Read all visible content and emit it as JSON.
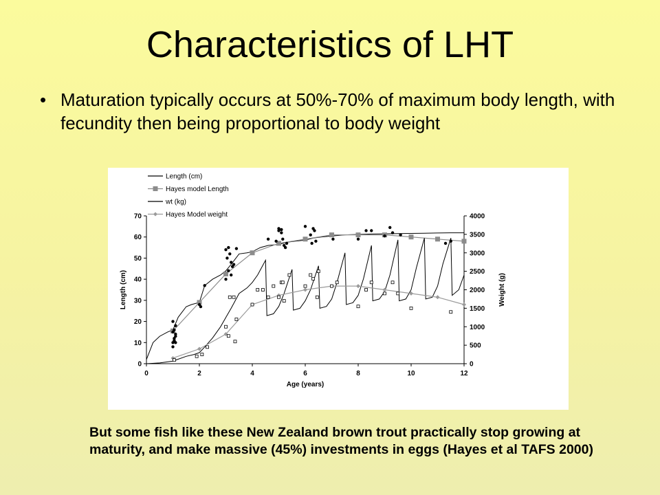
{
  "slide": {
    "title": "Characteristics of LHT",
    "bullet": "Maturation typically occurs at 50%-70% of maximum body length, with fecundity then being proportional to body weight",
    "caption": "But some fish like these New Zealand brown trout practically stop growing at maturity, and make massive (45%) investments in eggs (Hayes et al TAFS 2000)"
  },
  "chart_data": {
    "type": "line",
    "xlabel": "Age (years)",
    "ylabel": "Length (cm)",
    "y2label": "Weight (g)",
    "xlim": [
      0,
      12
    ],
    "ylim": [
      0,
      70
    ],
    "y2lim": [
      0,
      4000
    ],
    "xticks": [
      0,
      2,
      4,
      6,
      8,
      10,
      12
    ],
    "yticks": [
      0,
      10,
      20,
      30,
      40,
      50,
      60,
      70
    ],
    "y2ticks": [
      0,
      500,
      1000,
      1500,
      2000,
      2500,
      3000,
      3500,
      4000
    ],
    "legend_position": "top-left",
    "legend": [
      "Length (cm)",
      "Hayes model Length",
      "wt (kg)",
      "Hayes Model weight"
    ],
    "series": [
      {
        "name": "Length (cm)",
        "style": "line",
        "axis": "left",
        "color": "#000000",
        "x": [
          0,
          0.25,
          0.5,
          0.8,
          1.0,
          1.2,
          1.5,
          1.7,
          2.0,
          2.2,
          2.5,
          2.8,
          3.0,
          3.2,
          3.5,
          3.8,
          4.0,
          4.3,
          4.6,
          5.0,
          5.3,
          5.6,
          6.0,
          6.3,
          6.6,
          7.0,
          7.5,
          8.0,
          8.5,
          9.0,
          9.5,
          10.0,
          10.5,
          11.0,
          11.5,
          12.0
        ],
        "y": [
          2,
          10,
          13,
          15,
          16,
          22,
          27,
          28,
          29,
          37,
          40,
          42,
          44,
          47,
          52,
          52.5,
          53,
          55,
          56,
          56.5,
          57.5,
          58,
          58.5,
          59.5,
          60,
          60.5,
          61,
          61.2,
          61.4,
          61.5,
          61.6,
          61.7,
          61.8,
          61.9,
          62,
          62
        ]
      },
      {
        "name": "Hayes model Length",
        "style": "line-square",
        "axis": "left",
        "color": "#8c8c8c",
        "x": [
          1,
          2,
          3,
          4,
          5,
          6,
          7,
          8,
          9,
          10,
          11,
          12
        ],
        "y": [
          15.5,
          29,
          42.5,
          52.5,
          57,
          59,
          61,
          61,
          61,
          60,
          59,
          58
        ]
      },
      {
        "name": "wt (kg)",
        "style": "line",
        "axis": "right",
        "color": "#000000",
        "x": [
          0,
          0.5,
          1.0,
          1.5,
          1.8,
          2.0,
          2.2,
          2.5,
          2.8,
          3.0,
          3.2,
          3.5,
          3.8,
          4.0,
          4.2,
          4.5,
          4.55,
          4.8,
          5.0,
          5.2,
          5.5,
          5.55,
          5.8,
          6.0,
          6.2,
          6.5,
          6.55,
          6.8,
          7.0,
          7.2,
          7.5,
          7.55,
          7.8,
          8.0,
          8.2,
          8.5,
          8.55,
          8.8,
          9.0,
          9.2,
          9.5,
          9.55,
          9.8,
          10.0,
          10.2,
          10.5,
          10.55,
          10.8,
          11.0,
          11.2,
          11.5,
          11.55,
          11.8,
          12.0
        ],
        "y": [
          0,
          20,
          70,
          200,
          250,
          300,
          450,
          700,
          1000,
          1250,
          1500,
          1900,
          2050,
          2200,
          2400,
          2800,
          1300,
          1350,
          1550,
          1900,
          2550,
          1450,
          1500,
          1700,
          2000,
          2650,
          1500,
          1550,
          1750,
          2200,
          3000,
          1600,
          1650,
          1850,
          2300,
          3200,
          1700,
          1750,
          1950,
          2400,
          3350,
          1700,
          1750,
          2000,
          2600,
          3400,
          1750,
          1800,
          2100,
          2700,
          3400,
          1850,
          2000,
          2400
        ]
      },
      {
        "name": "Hayes Model weight",
        "style": "line-diamond",
        "axis": "right",
        "color": "#9a9a9a",
        "x": [
          1,
          2,
          3,
          4,
          5,
          6,
          7,
          8,
          9,
          10,
          11,
          12
        ],
        "y": [
          150,
          400,
          800,
          1600,
          1850,
          2000,
          2100,
          2100,
          2000,
          1900,
          1800,
          1600
        ]
      },
      {
        "name": "Length observations",
        "style": "filled-dots",
        "axis": "left",
        "color": "#000000",
        "x": [
          1.0,
          1.0,
          1.05,
          1.05,
          1.1,
          1.1,
          1.0,
          1.05,
          1.1,
          1.0,
          1.1,
          2.0,
          2.05,
          2.2,
          3.0,
          3.1,
          3.2,
          3.3,
          3.1,
          3.0,
          3.2,
          3.4,
          3.05,
          3.15,
          3.25,
          4.6,
          4.9,
          5.0,
          5.1,
          5.15,
          5.2,
          5.0,
          5.25,
          5.1,
          5.3,
          6.0,
          6.2,
          6.4,
          6.3,
          6.25,
          6.35,
          7.05,
          8.0,
          8.3,
          8.5,
          9.2,
          9.6,
          9.0,
          9.3,
          11.3,
          11.5
        ],
        "y": [
          8,
          10,
          11,
          12,
          13,
          14,
          15,
          16,
          18,
          20,
          10,
          28,
          27,
          37,
          54,
          55,
          48,
          47,
          44,
          40,
          42,
          54.5,
          50,
          52,
          46,
          59,
          58,
          63,
          62,
          59,
          56,
          64,
          55,
          63.5,
          57,
          65,
          61,
          58,
          64,
          57,
          63,
          59,
          59,
          63,
          63,
          64.5,
          61,
          60.5,
          62,
          57,
          58
        ]
      },
      {
        "name": "Weight observations",
        "style": "open-squares",
        "axis": "right",
        "color": "#000000",
        "x": [
          1.05,
          1.9,
          2.1,
          2.3,
          3.0,
          3.1,
          3.15,
          3.3,
          3.35,
          3.4,
          4.0,
          4.2,
          4.4,
          4.6,
          4.8,
          5.0,
          5.1,
          5.2,
          5.15,
          5.4,
          6.0,
          6.2,
          6.3,
          6.45,
          6.5,
          7.0,
          7.2,
          8.0,
          8.3,
          8.5,
          9.0,
          9.3,
          9.5,
          10.0,
          11.5
        ],
        "y": [
          100,
          200,
          250,
          450,
          1000,
          750,
          1800,
          1800,
          600,
          1200,
          1600,
          2000,
          2000,
          1800,
          2100,
          1800,
          2200,
          1700,
          2200,
          2400,
          2100,
          2400,
          2300,
          1800,
          2500,
          2100,
          2200,
          1550,
          2000,
          2200,
          1900,
          2200,
          1900,
          1500,
          1400
        ]
      }
    ]
  }
}
